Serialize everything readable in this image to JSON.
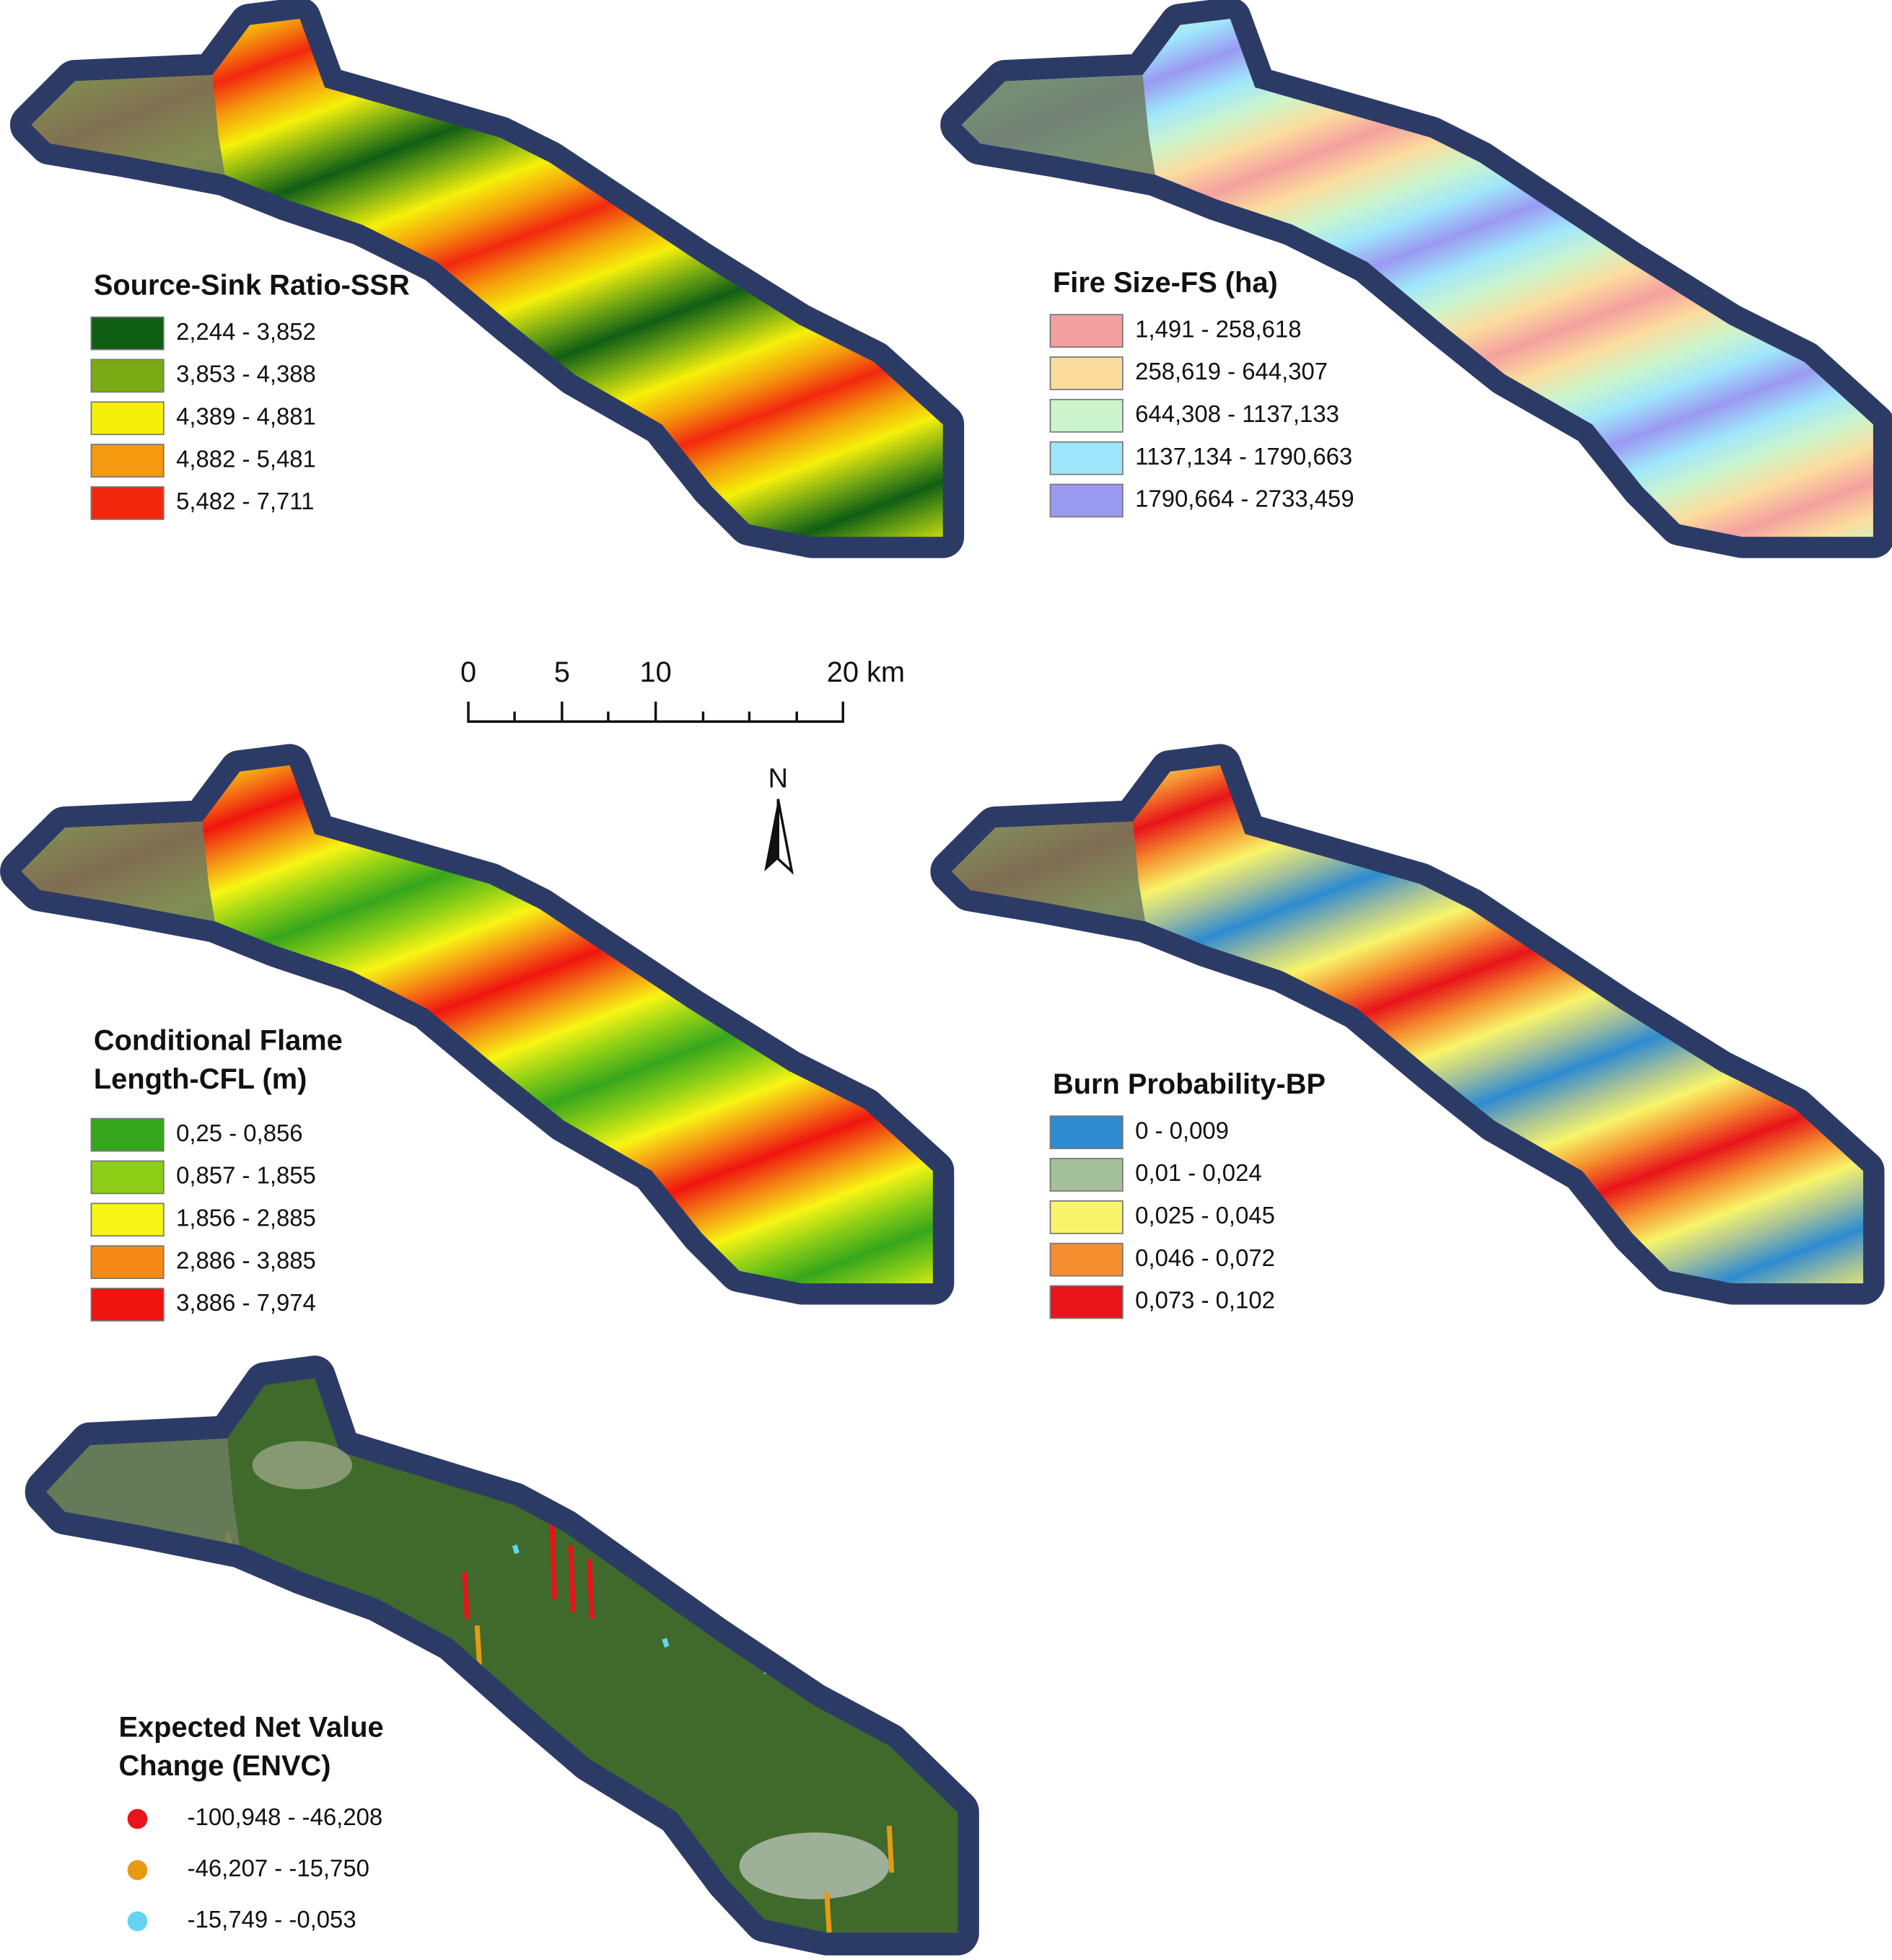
{
  "maps": [
    {
      "title_lines": [
        "Source-Sink Ratio-SSR"
      ],
      "legend_style": "box",
      "legend": [
        {
          "label": "2,244 - 3,852",
          "color": "#0f5e14"
        },
        {
          "label": "3,853 - 4,388",
          "color": "#7aab14"
        },
        {
          "label": "4,389 - 4,881",
          "color": "#f5f00a"
        },
        {
          "label": "4,882 - 5,481",
          "color": "#f59a0c"
        },
        {
          "label": "5,482 - 7,711",
          "color": "#f2280e"
        }
      ]
    },
    {
      "title_lines": [
        "Fire Size-FS (ha)"
      ],
      "legend_style": "box",
      "legend": [
        {
          "label": "1,491 - 258,618",
          "color": "#f5a0a0"
        },
        {
          "label": "258,619 - 644,307",
          "color": "#fbdc9c"
        },
        {
          "label": "644,308 - 1137,133",
          "color": "#cdf5cc"
        },
        {
          "label": "1137,134 - 1790,663",
          "color": "#9fe6fb"
        },
        {
          "label": "1790,664 - 2733,459",
          "color": "#9a99f2"
        }
      ]
    },
    {
      "title_lines": [
        "Conditional Flame",
        "Length-CFL (m)"
      ],
      "legend_style": "box",
      "legend": [
        {
          "label": "0,25 - 0,856",
          "color": "#36a61c"
        },
        {
          "label": "0,857 - 1,855",
          "color": "#8dcf16"
        },
        {
          "label": "1,856 - 2,885",
          "color": "#f8f514"
        },
        {
          "label": "2,886 - 3,885",
          "color": "#f58a14"
        },
        {
          "label": "3,886 - 7,974",
          "color": "#f0140f"
        }
      ]
    },
    {
      "title_lines": [
        "Burn Probability-BP"
      ],
      "legend_style": "box",
      "legend": [
        {
          "label": "0 - 0,009",
          "color": "#2e8bd0"
        },
        {
          "label": "0,01 - 0,024",
          "color": "#a2c09a"
        },
        {
          "label": "0,025 - 0,045",
          "color": "#f8f56a"
        },
        {
          "label": "0,046 - 0,072",
          "color": "#f58e2e"
        },
        {
          "label": "0,073 - 0,102",
          "color": "#e8141a"
        }
      ]
    },
    {
      "title_lines": [
        "Expected Net Value",
        "Change (ENVC)"
      ],
      "legend_style": "dot",
      "legend": [
        {
          "label": "-100,948 - -46,208",
          "color": "#e8141a"
        },
        {
          "label": "-46,207 - -15,750",
          "color": "#e69a14"
        },
        {
          "label": "-15,749 - -0,053",
          "color": "#64d4f2"
        }
      ]
    }
  ],
  "scale_bar": {
    "labels": [
      "0",
      "5",
      "10",
      "20 km"
    ]
  },
  "north": "N"
}
